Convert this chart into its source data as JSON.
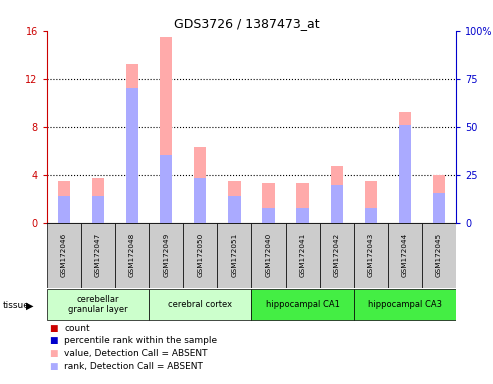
{
  "title": "GDS3726 / 1387473_at",
  "samples": [
    "GSM172046",
    "GSM172047",
    "GSM172048",
    "GSM172049",
    "GSM172050",
    "GSM172051",
    "GSM172040",
    "GSM172041",
    "GSM172042",
    "GSM172043",
    "GSM172044",
    "GSM172045"
  ],
  "value_absent": [
    3.5,
    3.7,
    13.2,
    15.5,
    6.3,
    3.5,
    3.3,
    3.3,
    4.7,
    3.5,
    9.2,
    4.0
  ],
  "rank_absent": [
    2.2,
    2.2,
    11.25,
    5.625,
    3.75,
    2.2,
    1.25,
    1.25,
    3.125,
    1.25,
    8.125,
    2.5
  ],
  "tissues": [
    {
      "name": "cerebellar\ngranular layer",
      "start": 0,
      "end": 3,
      "color": "#ccffcc"
    },
    {
      "name": "cerebral cortex",
      "start": 3,
      "end": 6,
      "color": "#ccffcc"
    },
    {
      "name": "hippocampal CA1",
      "start": 6,
      "end": 9,
      "color": "#44ee44"
    },
    {
      "name": "hippocampal CA3",
      "start": 9,
      "end": 12,
      "color": "#44ee44"
    }
  ],
  "ylim_left": [
    0,
    16
  ],
  "ylim_right": [
    0,
    100
  ],
  "yticks_left": [
    0,
    4,
    8,
    12,
    16
  ],
  "yticks_right": [
    0,
    25,
    50,
    75,
    100
  ],
  "ytick_labels_right": [
    "0",
    "25",
    "50",
    "75",
    "100%"
  ],
  "left_axis_color": "#cc0000",
  "right_axis_color": "#0000cc",
  "bar_width": 0.18,
  "value_color_absent": "#ffaaaa",
  "rank_color_absent": "#aaaaff",
  "sample_bg_color": "#cccccc",
  "grid_color": "#000000",
  "tissue_light_color": "#ccffcc",
  "tissue_dark_color": "#44ee44"
}
